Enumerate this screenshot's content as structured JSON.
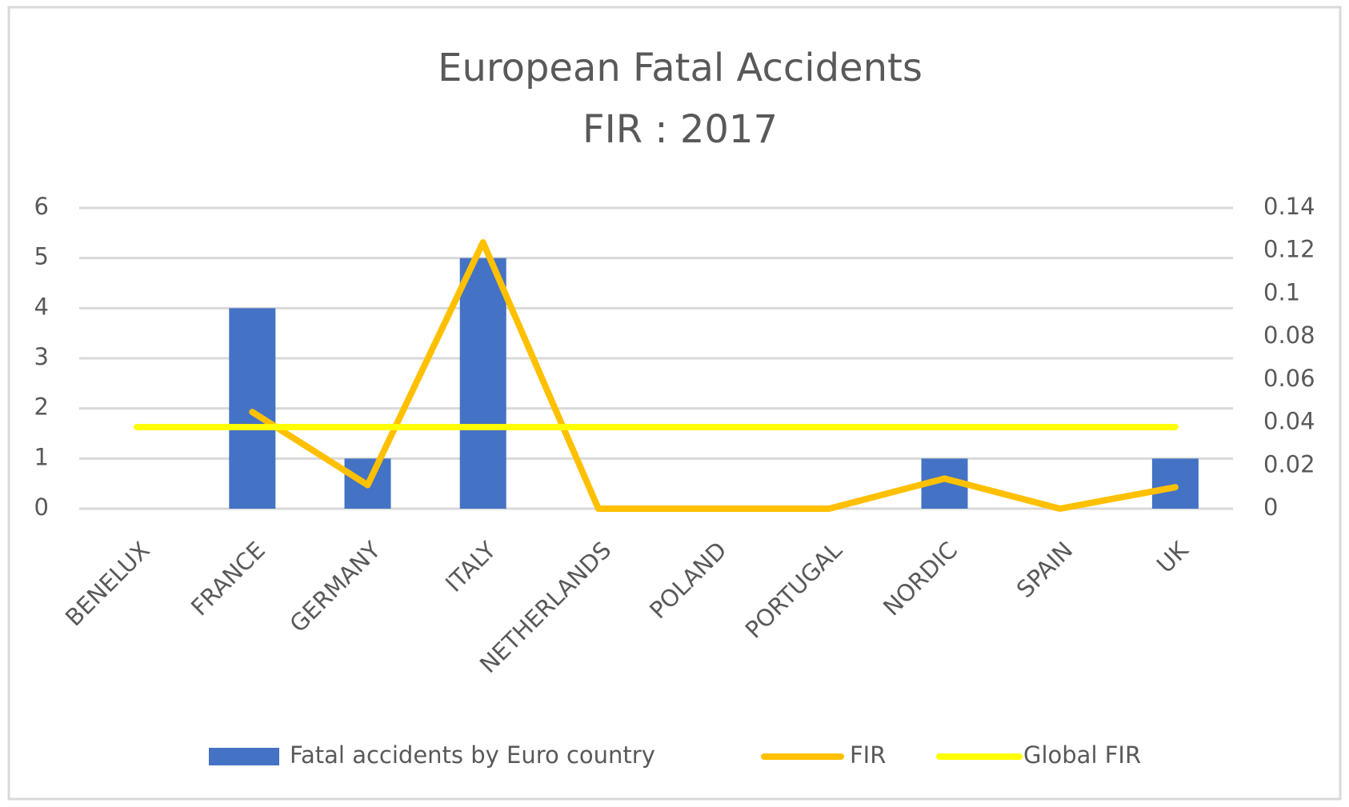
{
  "chart_data": {
    "type": "bar-line",
    "title": "European Fatal Accidents",
    "subtitle": "FIR : 2017",
    "categories": [
      "BENELUX",
      "FRANCE",
      "GERMANY",
      "ITALY",
      "NETHERLANDS",
      "POLAND",
      "PORTUGAL",
      "NORDIC",
      "SPAIN",
      "UK"
    ],
    "series": [
      {
        "name": "Fatal accidents by Euro country",
        "type": "bar",
        "color": "#4472c4",
        "values": [
          0,
          4,
          1,
          5,
          0,
          0,
          0,
          1,
          0,
          1
        ]
      },
      {
        "name": "FIR",
        "type": "line",
        "axis": "y2",
        "color": "#ffc000",
        "values": [
          null,
          0.045,
          0.011,
          0.124,
          0,
          0,
          0,
          0.014,
          0,
          0.01
        ]
      },
      {
        "name": "Global FIR",
        "type": "line",
        "axis": "y2",
        "color": "#ffff00",
        "values": [
          0.038,
          0.038,
          0.038,
          0.038,
          0.038,
          0.038,
          0.038,
          0.038,
          0.038,
          0.038
        ]
      }
    ],
    "ylim": [
      0,
      6
    ],
    "yticks": [
      0,
      1,
      2,
      3,
      4,
      5,
      6
    ],
    "y2lim": [
      0,
      0.14
    ],
    "y2ticks": [
      0,
      0.02,
      0.04,
      0.06,
      0.08,
      0.1,
      0.12,
      0.14
    ],
    "grid": true,
    "legend": "bottom"
  }
}
